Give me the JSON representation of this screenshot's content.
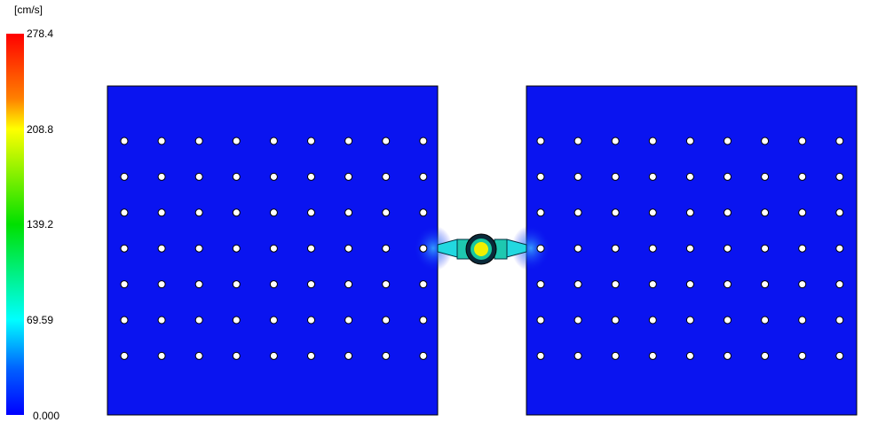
{
  "legend": {
    "unit": "[cm/s]",
    "ticks": [
      "278.4",
      "208.8",
      "139.2",
      "69.59",
      "0.000"
    ]
  },
  "scene": {
    "colors": {
      "plate_fill": "#0a14f0",
      "hole_fill": "#ffffff",
      "connector": "#1ec8c8",
      "gate_fill": "#f0f000",
      "gate_ring": "#0a2a3a"
    },
    "hole_grid": {
      "rows": 7,
      "cols_per_plate": 9
    }
  }
}
